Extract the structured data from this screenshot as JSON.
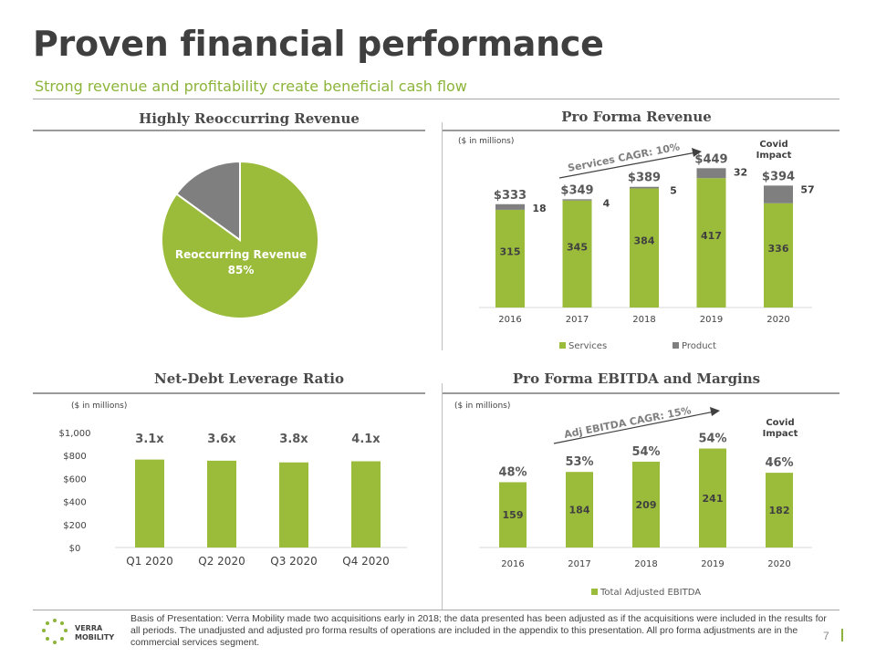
{
  "header": {
    "title": "Proven financial performance",
    "subtitle": "Strong revenue and profitability create beneficial cash flow"
  },
  "panels": {
    "pie_title": "Highly  Reoccurring Revenue",
    "revenue_title": "Pro Forma Revenue",
    "leverage_title": "Net-Debt Leverage Ratio",
    "ebitda_title": "Pro Forma EBITDA and Margins"
  },
  "notes": {
    "in_millions": "($ in millions)",
    "services_cagr": "Services CAGR: 10%",
    "ebitda_cagr": "Adj EBITDA CAGR: 15%",
    "covid_line1": "Covid",
    "covid_line2": "Impact"
  },
  "footer": {
    "text": "Basis of Presentation: Verra Mobility made two acquisitions early in 2018; the data presented has been adjusted as if the acquisitions were included in the results for all periods. The unadjusted and adjusted pro forma results of operations are included in the appendix to this presentation. All pro forma adjustments are in the commercial services segment.",
    "page": "7",
    "logo_line1": "VERRA",
    "logo_line2": "MOBILITY"
  },
  "colors": {
    "green": "#9bbb3b",
    "gray": "#7f7f7f",
    "accent": "#8cb43a"
  },
  "chart_data": [
    {
      "type": "pie",
      "labels": [
        "Reoccurring Revenue",
        "Other"
      ],
      "values": [
        85,
        15
      ],
      "data_labels": [
        "Reoccurring  Revenue",
        "85%"
      ]
    },
    {
      "type": "bar",
      "stacked": true,
      "categories": [
        "2016",
        "2017",
        "2018",
        "2019",
        "2020"
      ],
      "series": [
        {
          "name": "Services",
          "values": [
            315,
            345,
            384,
            417,
            336
          ]
        },
        {
          "name": "Product",
          "values": [
            18,
            4,
            5,
            32,
            57
          ]
        }
      ],
      "totals": [
        "$333",
        "$349",
        "$389",
        "$449",
        "$394"
      ],
      "legend": "bottom"
    },
    {
      "type": "bar",
      "categories": [
        "Q1 2020",
        "Q2 2020",
        "Q3 2020",
        "Q4 2020"
      ],
      "values": [
        765,
        755,
        740,
        750
      ],
      "ratio_labels": [
        "3.1x",
        "3.6x",
        "3.8x",
        "4.1x"
      ],
      "yticks": [
        "$0",
        "$200",
        "$400",
        "$600",
        "$800",
        "$1,000"
      ],
      "ylim": [
        0,
        1000
      ]
    },
    {
      "type": "bar",
      "categories": [
        "2016",
        "2017",
        "2018",
        "2019",
        "2020"
      ],
      "series": [
        {
          "name": "Total Adjusted EBITDA",
          "values": [
            159,
            184,
            209,
            241,
            182
          ]
        }
      ],
      "margins": [
        "48%",
        "53%",
        "54%",
        "54%",
        "46%"
      ],
      "legend": "bottom"
    }
  ]
}
